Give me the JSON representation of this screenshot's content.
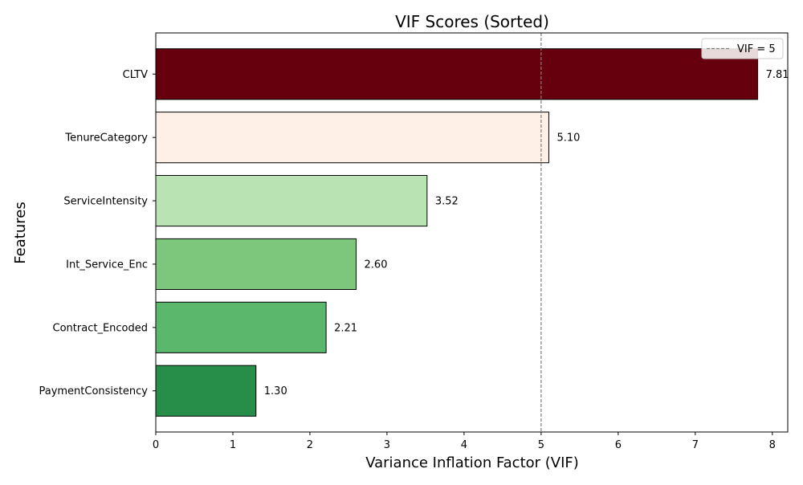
{
  "chart_data": {
    "type": "bar",
    "orientation": "horizontal",
    "title": "VIF Scores (Sorted)",
    "xlabel": "Variance Inflation Factor (VIF)",
    "ylabel": "Features",
    "categories": [
      "CLTV",
      "TenureCategory",
      "ServiceIntensity",
      "Int_Service_Enc",
      "Contract_Encoded",
      "PaymentConsistency"
    ],
    "values": [
      7.81,
      5.1,
      3.52,
      2.6,
      2.21,
      1.3
    ],
    "value_labels": [
      "7.81",
      "5.10",
      "3.52",
      "2.60",
      "2.21",
      "1.30"
    ],
    "bar_colors": [
      "#67000d",
      "#fff0e7",
      "#b9e3b3",
      "#7dc77c",
      "#5bb76c",
      "#268e48"
    ],
    "xlim": [
      0,
      8.2
    ],
    "xticks": [
      0,
      1,
      2,
      3,
      4,
      5,
      6,
      7,
      8
    ],
    "xtick_labels": [
      "0",
      "1",
      "2",
      "3",
      "4",
      "5",
      "6",
      "7",
      "8"
    ],
    "threshold": {
      "value": 5,
      "label": "VIF = 5",
      "color": "#808080",
      "style": "dashed"
    },
    "legend": {
      "placement": "top-right",
      "entries": [
        "VIF = 5"
      ]
    },
    "grid": false
  }
}
